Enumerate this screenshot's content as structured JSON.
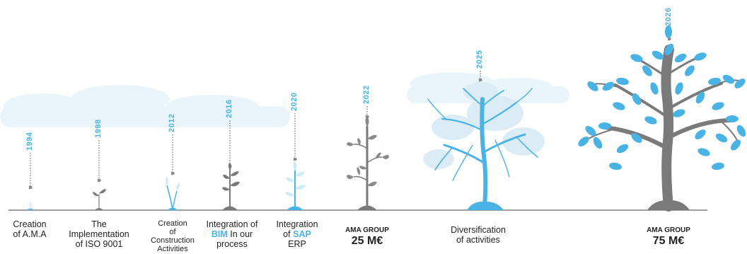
{
  "milestones": [
    {
      "year": "1994",
      "label_lines": [
        "Creation",
        "of A.M.A"
      ]
    },
    {
      "year": "1998",
      "label_lines": [
        "The",
        "Implementation",
        "of ISO 9001"
      ]
    },
    {
      "year": "2012",
      "label_lines": [
        "Creation",
        "of",
        "Construction",
        "Activities"
      ]
    },
    {
      "year": "2016",
      "label_pre": "Integration of",
      "label_highlight": "BIM",
      "label_post": "In our",
      "label_last": "process"
    },
    {
      "year": "2020",
      "label_pre": "Integration",
      "label_mid": "of",
      "label_highlight": "SAP",
      "label_last": "ERP"
    },
    {
      "year": "2022",
      "label_small": "AMA GROUP",
      "label_big": "25 M€"
    },
    {
      "year": "2025",
      "label_lines": [
        "Diversification",
        "of activities"
      ]
    },
    {
      "year": "2026",
      "label_small": "AMA GROUP",
      "label_big": "75 M€"
    }
  ],
  "colors": {
    "accent": "#4ab3e6",
    "gray": "#7a7a7a",
    "cloud": "#eaf4fb",
    "line": "#666666"
  }
}
